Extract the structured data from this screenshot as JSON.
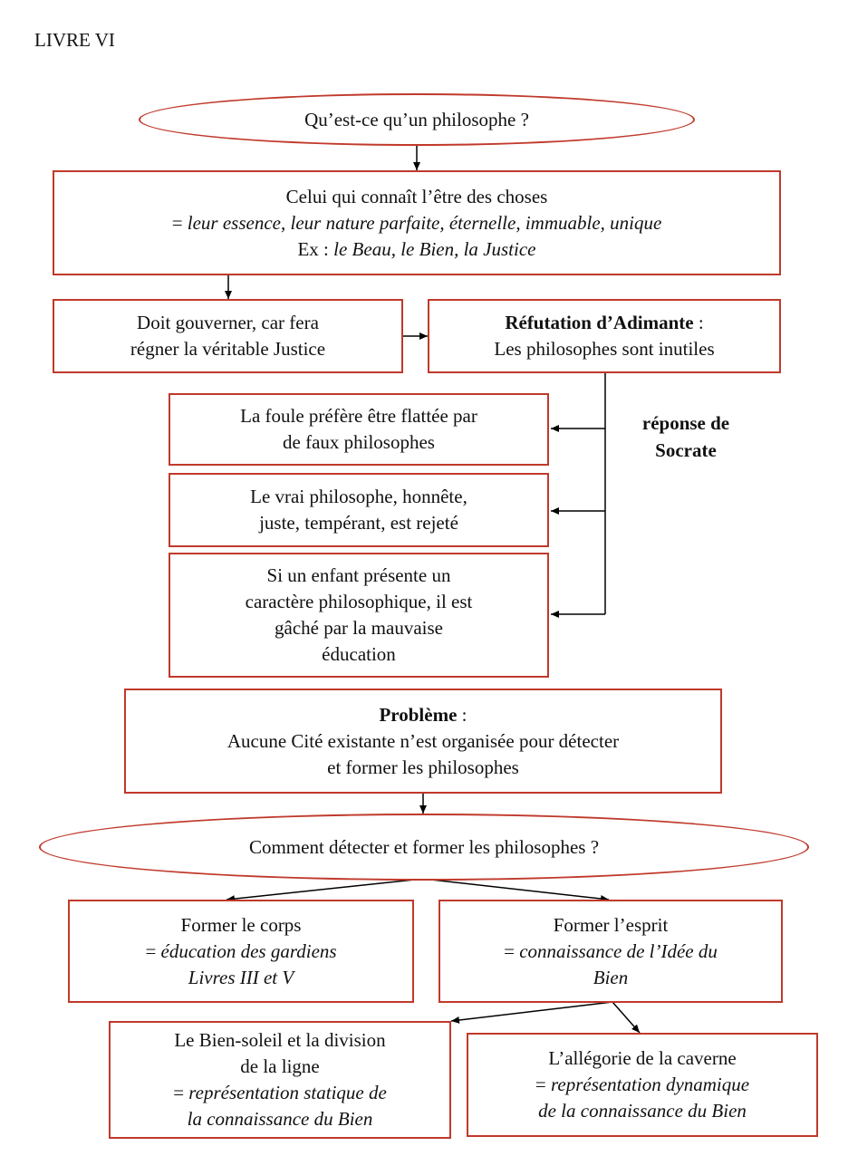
{
  "livre": "LIVRE VI",
  "q1": "Qu’est-ce qu’un philosophe ?",
  "def": {
    "l1": "Celui qui connaît l’être des choses",
    "l2_prefix": "= ",
    "l2": "leur essence, leur nature parfaite, éternelle, immuable, unique",
    "l3_prefix": "Ex : ",
    "l3": "le Beau, le Bien, la Justice"
  },
  "gouverner": {
    "l1": "Doit gouverner, car fera",
    "l2": "régner la véritable Justice"
  },
  "refutation": {
    "title": "Réfutation d’Adimante",
    "colon": " :",
    "l2": "Les philosophes sont inutiles"
  },
  "reponse": {
    "l1": "réponse de",
    "l2": "Socrate"
  },
  "r1": {
    "l1": "La foule préfère être flattée par",
    "l2": "de faux philosophes"
  },
  "r2": {
    "l1": "Le vrai philosophe, honnête,",
    "l2": "juste, tempérant, est rejeté"
  },
  "r3": {
    "l1": "Si un enfant présente un",
    "l2": "caractère philosophique, il est",
    "l3": "gâché par la mauvaise",
    "l4": "éducation"
  },
  "probleme": {
    "title": "Problème",
    "colon": " :",
    "l2": "Aucune Cité existante n’est organisée pour détecter",
    "l3": "et former les philosophes"
  },
  "q2": "Comment détecter et former les philosophes ?",
  "corps": {
    "l1": "Former le corps",
    "l2_prefix": "= ",
    "l2": "éducation des gardiens",
    "l3": "Livres III et V"
  },
  "esprit": {
    "l1": "Former l’esprit",
    "l2_prefix": "= ",
    "l2": "connaissance de l’Idée du",
    "l3": "Bien"
  },
  "soleil": {
    "l1": "Le Bien-soleil et la division",
    "l2": "de la ligne",
    "l3_prefix": "= ",
    "l3": "représentation statique de",
    "l4": "la connaissance du Bien"
  },
  "caverne": {
    "l1": "L’allégorie de la caverne",
    "l2_prefix": "= ",
    "l2": "représentation dynamique",
    "l3": "de la connaissance du Bien"
  }
}
